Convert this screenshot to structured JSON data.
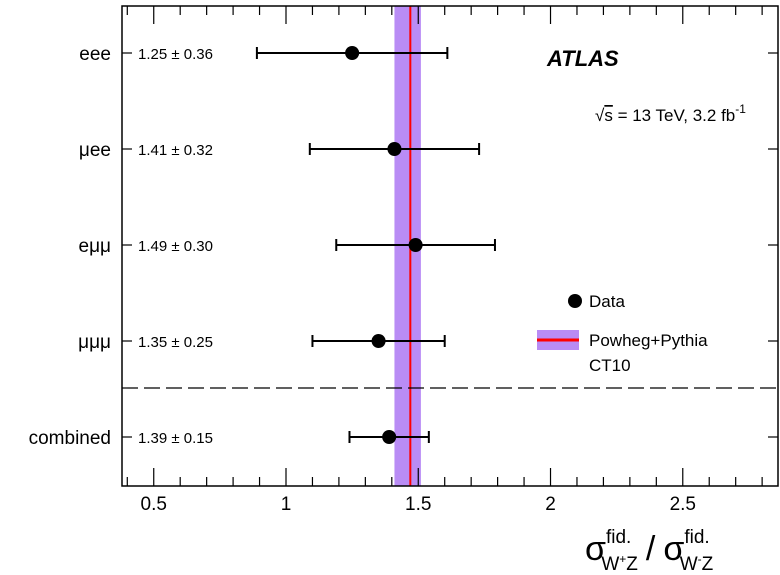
{
  "chart_data": {
    "type": "scatter",
    "categories": [
      "eee",
      "μee",
      "eμμ",
      "μμμ",
      "combined"
    ],
    "points": [
      {
        "category": "eee",
        "value": 1.25,
        "error": 0.36,
        "label": "1.25 ± 0.36"
      },
      {
        "category": "μee",
        "value": 1.41,
        "error": 0.32,
        "label": "1.41 ± 0.32"
      },
      {
        "category": "eμμ",
        "value": 1.49,
        "error": 0.3,
        "label": "1.49 ± 0.30"
      },
      {
        "category": "μμμ",
        "value": 1.35,
        "error": 0.25,
        "label": "1.35 ± 0.25"
      },
      {
        "category": "combined",
        "value": 1.39,
        "error": 0.15,
        "label": "1.39 ± 0.15"
      }
    ],
    "prediction": {
      "name_line1": "Powheg+Pythia",
      "name_line2": "CT10",
      "central": 1.47,
      "band": [
        1.41,
        1.51
      ]
    },
    "data_legend": "Data",
    "experiment": "ATLAS",
    "energy_label": "√s = 13 TeV, 3.2 fb⁻¹",
    "energy_parts": {
      "sqrt": "√",
      "s": "s",
      "rest": " = 13 TeV, 3.2 fb",
      "sup": "-1"
    },
    "xlabel_parts": {
      "sym": "σ",
      "sup": "fid.",
      "sub_num": "W",
      "sub_num_sup": "+",
      "sub_num_z": "Z",
      "slash": "/",
      "sub_den": "W",
      "sub_den_sup": "-",
      "sub_den_z": "Z"
    },
    "xticks": [
      0.5,
      1,
      1.5,
      2,
      2.5
    ],
    "xtick_labels": [
      "0.5",
      "1",
      "1.5",
      "2",
      "2.5"
    ],
    "xlim": [
      0.38,
      2.86
    ],
    "separator": "dashed line between μμμ and combined",
    "colors": {
      "band": "#b98cf5",
      "line": "#ff0000",
      "marker": "#000000"
    }
  }
}
